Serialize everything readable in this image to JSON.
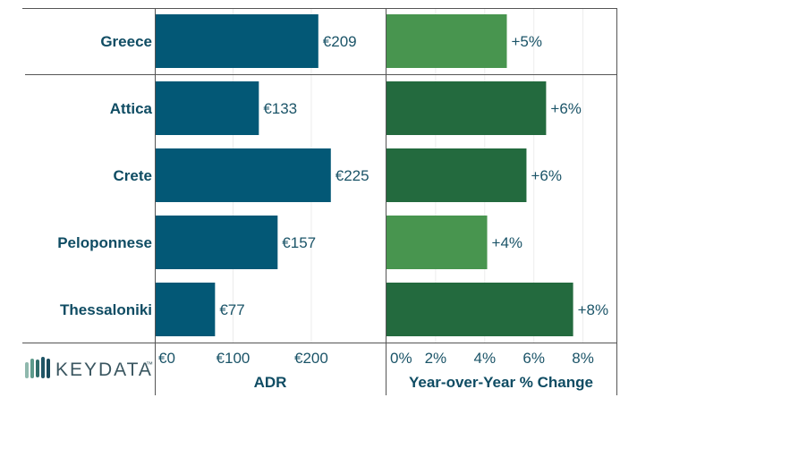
{
  "chart_data": [
    {
      "type": "bar",
      "orientation": "horizontal",
      "categories": [
        "Greece",
        "Attica",
        "Crete",
        "Peloponnese",
        "Thessaloniki"
      ],
      "values": [
        209,
        133,
        225,
        157,
        77
      ],
      "value_labels": [
        "€209",
        "€133",
        "€225",
        "€157",
        "€77"
      ],
      "xlabel": "ADR",
      "ticks": [
        0,
        100,
        200
      ],
      "tick_labels": [
        "€0",
        "€100",
        "€200"
      ],
      "xlim": [
        0,
        295
      ],
      "colors": [
        "#035876",
        "#035876",
        "#035876",
        "#035876",
        "#035876"
      ]
    },
    {
      "type": "bar",
      "orientation": "horizontal",
      "categories": [
        "Greece",
        "Attica",
        "Crete",
        "Peloponnese",
        "Thessaloniki"
      ],
      "values": [
        4.9,
        6.5,
        5.7,
        4.1,
        7.6
      ],
      "value_labels": [
        "+5%",
        "+6%",
        "+6%",
        "+4%",
        "+8%"
      ],
      "xlabel": "Year-over-Year % Change",
      "ticks": [
        0,
        2,
        4,
        6,
        8
      ],
      "tick_labels": [
        "0%",
        "2%",
        "4%",
        "6%",
        "8%"
      ],
      "xlim": [
        0,
        9.4
      ],
      "colors": [
        "#48954f",
        "#236a3e",
        "#236a3e",
        "#48954f",
        "#236a3e"
      ]
    }
  ],
  "logo": {
    "text": "KEYDATA",
    "trademark": "™"
  },
  "colors": {
    "label": "#0f4c63",
    "divider": "#555555"
  }
}
